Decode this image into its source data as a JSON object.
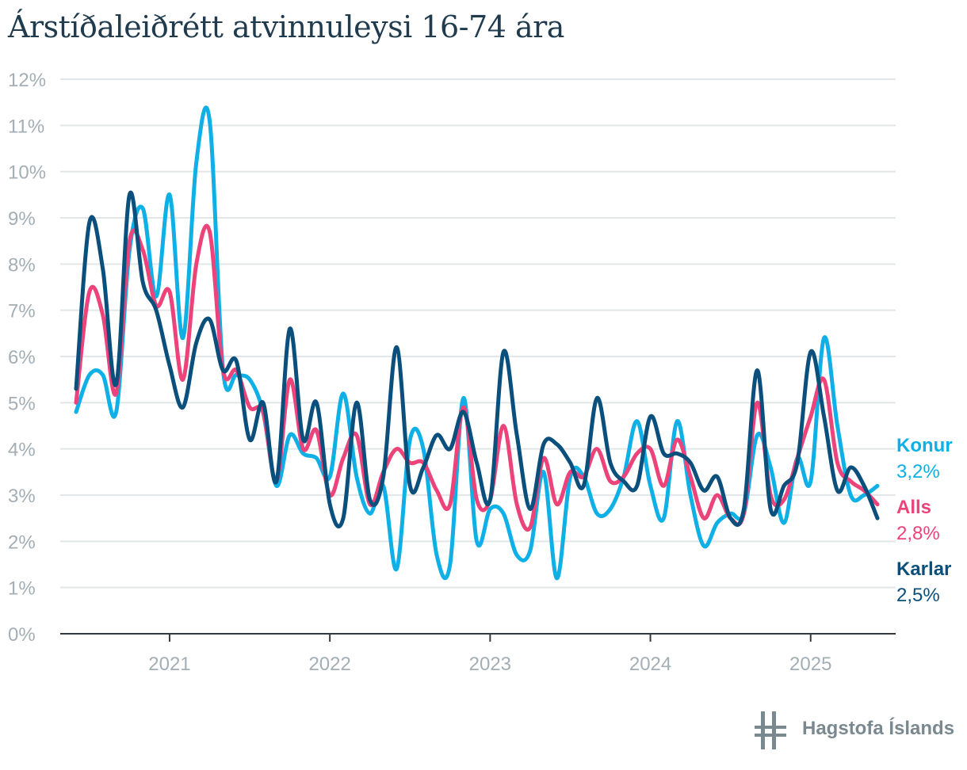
{
  "title": "Árstíðaleiðrétt atvinnuleysi 16-74 ára",
  "logo_text": "Hagstofa Íslands",
  "chart_data": {
    "type": "line",
    "title": "Árstíðaleiðrétt atvinnuleysi 16-74 ára",
    "xlabel": "",
    "ylabel": "",
    "ylim": [
      0,
      12
    ],
    "yticks": [
      0,
      1,
      2,
      3,
      4,
      5,
      6,
      7,
      8,
      9,
      10,
      11,
      12
    ],
    "ytick_labels": [
      "0%",
      "1%",
      "2%",
      "3%",
      "4%",
      "5%",
      "6%",
      "7%",
      "8%",
      "9%",
      "10%",
      "11%",
      "12%"
    ],
    "x_start": "2020-06",
    "x_end": "2025-06",
    "xtick_labels": [
      "2021",
      "2022",
      "2023",
      "2024",
      "2025"
    ],
    "xtick_months": [
      "2021-01",
      "2022-01",
      "2023-01",
      "2024-01",
      "2025-01"
    ],
    "grid": "horizontal",
    "colors": {
      "konur": "#0fb0e6",
      "alls": "#ec437a",
      "karlar": "#0b4f7d"
    },
    "series": [
      {
        "name": "Konur",
        "end_label": "3,2%",
        "values": [
          4.8,
          5.6,
          5.6,
          4.8,
          8.3,
          9.2,
          7.3,
          9.5,
          6.4,
          10.2,
          11.1,
          5.7,
          5.6,
          5.5,
          4.8,
          3.2,
          4.3,
          3.9,
          3.8,
          3.4,
          5.2,
          3.4,
          2.6,
          3.2,
          1.4,
          4.2,
          4.0,
          1.7,
          1.5,
          5.1,
          2.0,
          2.7,
          2.6,
          1.7,
          1.8,
          3.5,
          1.2,
          3.4,
          3.4,
          2.6,
          2.7,
          3.4,
          4.6,
          3.2,
          2.5,
          4.6,
          3.0,
          1.9,
          2.4,
          2.6,
          2.6,
          4.3,
          3.6,
          2.4,
          3.8,
          3.3,
          6.4,
          4.5,
          3.0,
          3.0,
          3.2
        ]
      },
      {
        "name": "Alls",
        "end_label": "2,8%",
        "values": [
          5.0,
          7.4,
          6.9,
          5.2,
          8.5,
          8.3,
          7.1,
          7.4,
          5.5,
          8.0,
          8.7,
          5.7,
          5.7,
          4.9,
          4.8,
          3.3,
          5.5,
          4.0,
          4.4,
          3.0,
          3.8,
          4.3,
          2.8,
          3.5,
          4.0,
          3.7,
          3.7,
          3.1,
          2.8,
          4.9,
          2.9,
          2.9,
          4.5,
          2.8,
          2.3,
          3.8,
          2.8,
          3.5,
          3.4,
          4.0,
          3.3,
          3.4,
          3.9,
          4.0,
          3.2,
          4.2,
          3.4,
          2.5,
          3.0,
          2.5,
          2.6,
          5.0,
          3.0,
          2.9,
          3.8,
          4.7,
          5.5,
          3.7,
          3.3,
          3.1,
          2.8
        ]
      },
      {
        "name": "Karlar",
        "end_label": "2,5%",
        "values": [
          5.3,
          8.9,
          7.9,
          5.4,
          9.5,
          7.6,
          7.0,
          5.8,
          4.9,
          6.3,
          6.8,
          5.7,
          5.9,
          4.2,
          5.0,
          3.3,
          6.6,
          4.2,
          5.0,
          2.8,
          2.5,
          5.0,
          2.9,
          3.4,
          6.2,
          3.2,
          3.6,
          4.3,
          4.0,
          4.8,
          3.7,
          2.9,
          6.1,
          4.3,
          2.7,
          4.1,
          4.1,
          3.7,
          3.2,
          5.1,
          3.7,
          3.3,
          3.2,
          4.7,
          3.9,
          3.9,
          3.7,
          3.1,
          3.4,
          2.5,
          2.7,
          5.7,
          2.7,
          3.2,
          3.7,
          6.1,
          4.7,
          3.1,
          3.6,
          3.2,
          2.5
        ]
      }
    ]
  }
}
